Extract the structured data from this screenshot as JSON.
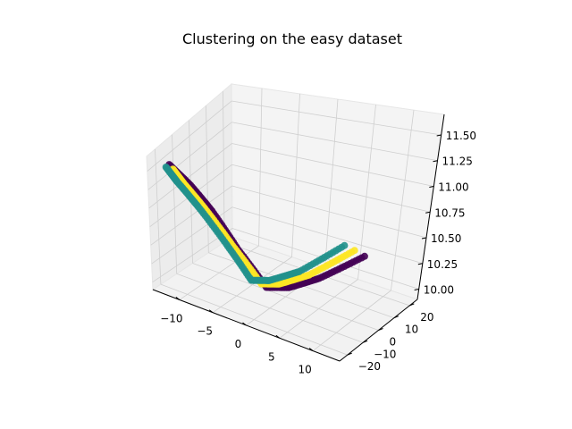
{
  "chart_data": {
    "type": "scatter",
    "projection": "3d",
    "title": "Clustering on the easy dataset",
    "xlabel": "",
    "ylabel": "",
    "zlabel": "",
    "xlim": [
      -14,
      14
    ],
    "ylim": [
      -25,
      25
    ],
    "zlim": [
      9.9,
      11.7
    ],
    "x_ticks": [
      -10,
      -5,
      0,
      5,
      10
    ],
    "y_ticks": [
      -20,
      -10,
      0,
      10,
      20
    ],
    "z_ticks": [
      10.0,
      10.25,
      10.5,
      10.75,
      11.0,
      11.25,
      11.5
    ],
    "x_tick_labels": [
      "−10",
      "−5",
      "0",
      "5",
      "10"
    ],
    "y_tick_labels": [
      "−20",
      "−10",
      "0",
      "10",
      "20"
    ],
    "z_tick_labels": [
      "10.00",
      "10.25",
      "10.50",
      "10.75",
      "11.00",
      "11.25",
      "11.50"
    ],
    "grid": true,
    "legend": "none",
    "colors": {
      "pane": "#f2f2f2",
      "grid": "#cfcfcf",
      "axis": "#000000"
    },
    "series": [
      {
        "color": "#440154",
        "x": [
          8,
          3.5,
          0.5,
          -1.5,
          -4.5,
          -7,
          -9,
          -11
        ],
        "y": [
          14,
          6,
          0,
          -6,
          -11,
          -16,
          -20,
          -24
        ],
        "z": [
          10.35,
          10.12,
          10.02,
          10.05,
          10.5,
          11.0,
          11.35,
          11.65
        ]
      },
      {
        "color": "#fde725",
        "x": [
          6.5,
          2,
          -1,
          -2.5,
          -5.5,
          -8,
          -10,
          -11
        ],
        "y": [
          14,
          6,
          0,
          -5,
          -10,
          -16,
          -20,
          -22
        ],
        "z": [
          10.38,
          10.12,
          10.02,
          10.05,
          10.5,
          11.0,
          11.35,
          11.55
        ]
      },
      {
        "color": "#21918c",
        "x": [
          5,
          0.5,
          -2.5,
          -4,
          -6.5,
          -9,
          -11,
          -12
        ],
        "y": [
          14,
          6,
          0,
          -5,
          -10,
          -16,
          -20,
          -22
        ],
        "z": [
          10.4,
          10.12,
          10.02,
          10.05,
          10.5,
          11.0,
          11.35,
          11.55
        ]
      }
    ]
  }
}
